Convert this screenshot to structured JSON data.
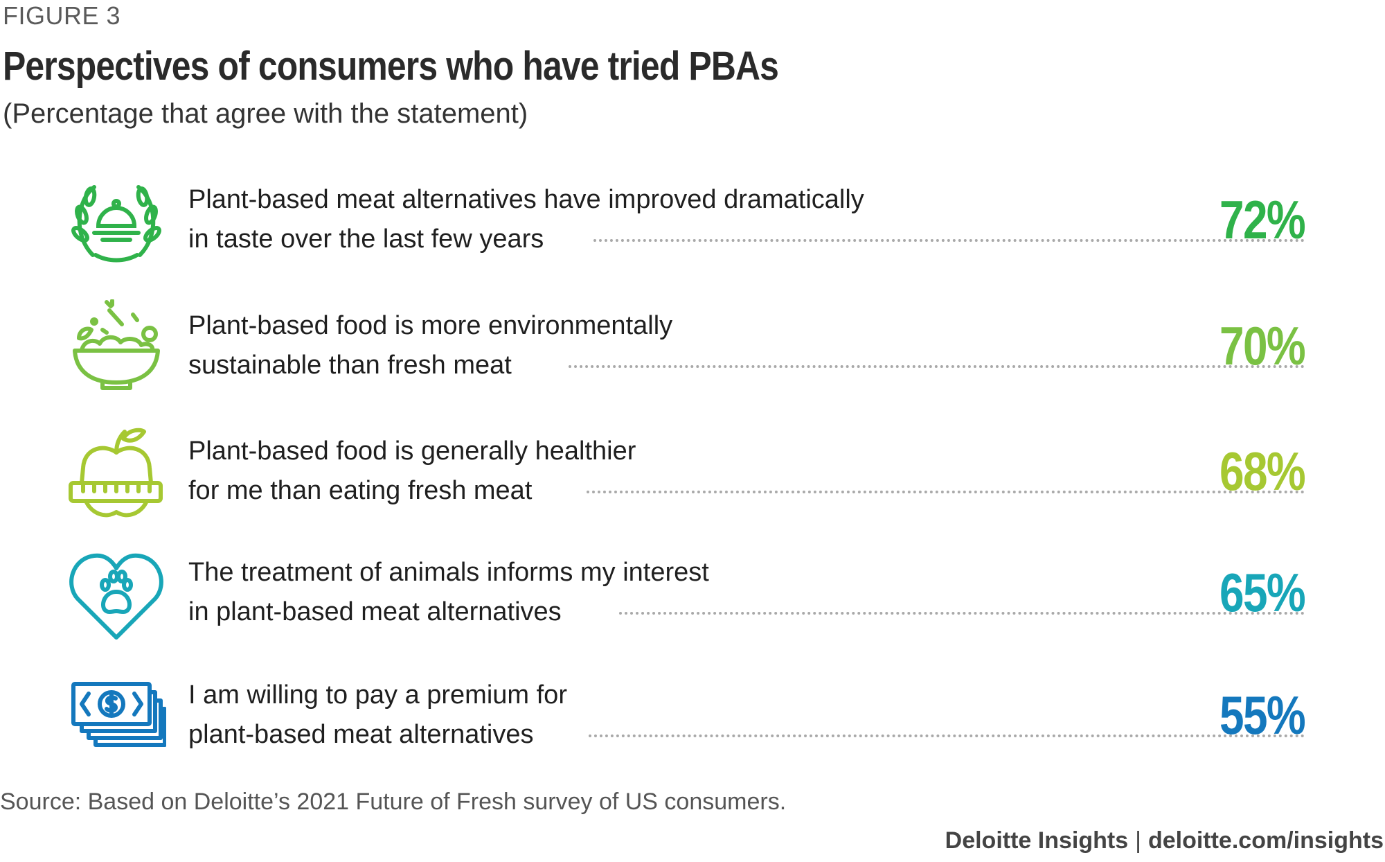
{
  "figure_label": "FIGURE 3",
  "colors": {
    "green_dark": "#2fb24a",
    "green_mid": "#7ac143",
    "green_lime": "#a6c832",
    "teal": "#18a6b8",
    "blue": "#1478bd"
  },
  "chart_data": {
    "type": "table",
    "title": "Perspectives of consumers who have tried PBAs",
    "subtitle": "(Percentage that agree with the statement)",
    "rows": [
      {
        "icon": "award-cloche-icon",
        "line1": "Plant-based meat alternatives have improved dramatically",
        "line2": "in taste over the last few years",
        "value": 72,
        "label": "72%",
        "color": "#2fb24a"
      },
      {
        "icon": "salad-bowl-icon",
        "line1": "Plant-based food is more environmentally",
        "line2": "sustainable than fresh meat",
        "value": 70,
        "label": "70%",
        "color": "#7ac143"
      },
      {
        "icon": "apple-measuring-tape-icon",
        "line1": "Plant-based food is generally healthier",
        "line2": "for me than eating fresh meat",
        "value": 68,
        "label": "68%",
        "color": "#a6c832"
      },
      {
        "icon": "heart-paw-icon",
        "line1": "The treatment of animals informs my interest",
        "line2": "in plant-based meat alternatives",
        "value": 65,
        "label": "65%",
        "color": "#18a6b8"
      },
      {
        "icon": "money-stack-icon",
        "line1": "I am willing to pay a premium for",
        "line2": "plant-based meat alternatives",
        "value": 55,
        "label": "55%",
        "color": "#1478bd"
      }
    ]
  },
  "source": "Source: Based on Deloitte’s 2021 Future of Fresh survey of US consumers.",
  "credit": {
    "brand": "Deloitte Insights",
    "separator": "|",
    "url": "deloitte.com/insights"
  }
}
